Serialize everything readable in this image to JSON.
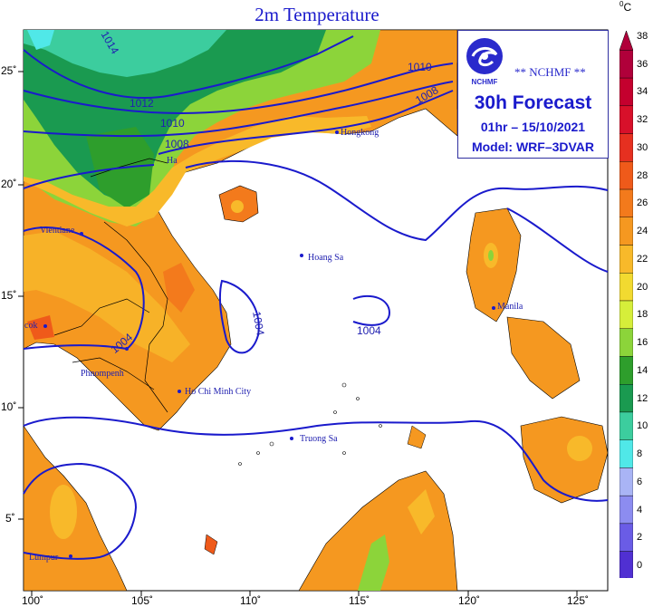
{
  "title": "2m Temperature",
  "info": {
    "org": "** NCHMF **",
    "logo_text": "NCHMF",
    "forecast": "30h Forecast",
    "datetime": "01hr – 15/10/2021",
    "model": "Model: WRF–3DVAR"
  },
  "unit": "0C",
  "lon_labels": [
    "100˚",
    "105˚",
    "110˚",
    "115˚",
    "120˚",
    "125˚"
  ],
  "lat_labels": [
    "25˚",
    "20˚",
    "15˚",
    "10˚",
    "5˚"
  ],
  "colorbar": {
    "labels": [
      "38",
      "36",
      "34",
      "32",
      "30",
      "28",
      "26",
      "24",
      "22",
      "20",
      "18",
      "16",
      "14",
      "12",
      "10",
      "8",
      "6",
      "4",
      "2",
      "0"
    ],
    "colors": [
      "#b0003a",
      "#c4002e",
      "#d8102a",
      "#e63020",
      "#ef5a1a",
      "#f37a1c",
      "#f59820",
      "#f8b92a",
      "#f2da30",
      "#d6ee3a",
      "#8cd43a",
      "#2e9e2c",
      "#1a9a50",
      "#3ccd9e",
      "#50e8e8",
      "#a9b4f5",
      "#8c8cf0",
      "#6a5ce6",
      "#5030d2",
      "#7a2aba"
    ]
  },
  "places": [
    "Hongkong",
    "Ha",
    "Vientiane",
    "Hoang Sa",
    "Manila",
    "cok",
    "Phnompenh",
    "Ho Chi Minh City",
    "Truong Sa",
    "Lumpur"
  ],
  "isobars": [
    "1014",
    "1012",
    "1010",
    "1008",
    "1010",
    "1008",
    "1004",
    "1004",
    "1004"
  ]
}
